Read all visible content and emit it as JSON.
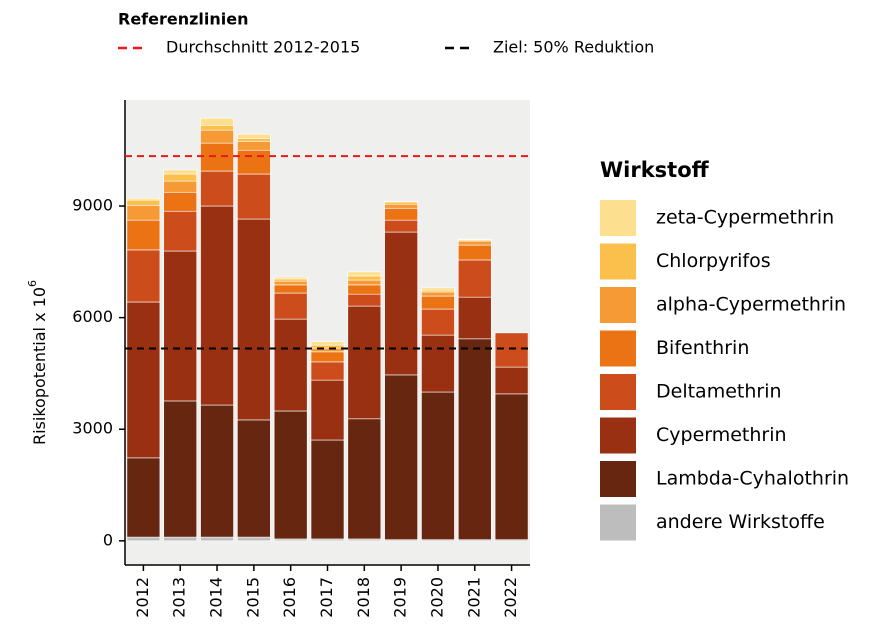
{
  "chart_data": {
    "type": "stacked_bar",
    "y_label": "Risikopotential  x 10",
    "y_label_exponent": "6",
    "legend_title": "Wirkstoff",
    "categories": [
      "2012",
      "2013",
      "2014",
      "2015",
      "2016",
      "2017",
      "2018",
      "2019",
      "2020",
      "2021",
      "2022"
    ],
    "series": [
      {
        "name": "andere Wirkstoffe",
        "color": "#bdbdbd",
        "values": [
          100,
          100,
          100,
          100,
          50,
          50,
          50,
          30,
          30,
          30,
          30
        ]
      },
      {
        "name": "Lambda-Cyhalothrin",
        "color": "#662610",
        "values": [
          2130,
          3660,
          3550,
          3150,
          3440,
          2660,
          3230,
          4430,
          3970,
          5400,
          3920
        ]
      },
      {
        "name": "Cypermethrin",
        "color": "#983011",
        "values": [
          4190,
          4030,
          5350,
          5400,
          2470,
          1610,
          3030,
          3840,
          1530,
          1120,
          720
        ]
      },
      {
        "name": "Deltamethrin",
        "color": "#cc4d1b",
        "values": [
          1400,
          1070,
          940,
          1210,
          700,
          490,
          320,
          320,
          700,
          1000,
          920
        ]
      },
      {
        "name": "Bifenthrin",
        "color": "#ec7314",
        "values": [
          800,
          510,
          750,
          640,
          220,
          270,
          250,
          320,
          350,
          400,
          0
        ]
      },
      {
        "name": "alpha-Cypermethrin",
        "color": "#f59a35",
        "values": [
          400,
          300,
          350,
          240,
          100,
          100,
          130,
          110,
          110,
          110,
          0
        ]
      },
      {
        "name": "Chlorpyrifos",
        "color": "#fbc04c",
        "values": [
          140,
          190,
          130,
          80,
          60,
          80,
          110,
          60,
          50,
          30,
          0
        ]
      },
      {
        "name": "zeta-Cypermethrin",
        "color": "#fde08f",
        "values": [
          50,
          110,
          190,
          110,
          50,
          90,
          110,
          20,
          60,
          20,
          0
        ]
      }
    ],
    "ylim": [
      -650,
      11850
    ],
    "yticks": [
      0,
      3000,
      6000,
      9000
    ],
    "reference_lines": {
      "title": "Referenzlinien",
      "lines": [
        {
          "name": "Durchschnitt 2012-2015",
          "value": 10340,
          "color": "#e41a1c"
        },
        {
          "name": "Ziel: 50% Reduktion",
          "value": 5170,
          "color": "#000000"
        }
      ]
    }
  }
}
